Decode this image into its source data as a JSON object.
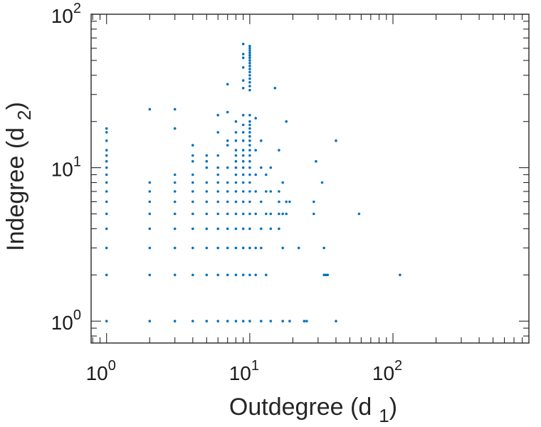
{
  "chart_data": {
    "type": "scatter",
    "title": "",
    "xlabel_main": "Outdegree (d",
    "xlabel_sub": "1",
    "xlabel_close": ")",
    "ylabel_main": "Indegree (d",
    "ylabel_sub": "2",
    "ylabel_close": ")",
    "x_scale": "log",
    "y_scale": "log",
    "xlim": [
      0.78,
      890
    ],
    "ylim": [
      0.72,
      100
    ],
    "grid": false,
    "box": true,
    "marker_color": "#0072BD",
    "x_ticks": [
      {
        "base": "10",
        "exp": "0"
      },
      {
        "base": "10",
        "exp": "1"
      },
      {
        "base": "10",
        "exp": "2"
      }
    ],
    "y_ticks": [
      {
        "base": "10",
        "exp": "0"
      },
      {
        "base": "10",
        "exp": "1"
      },
      {
        "base": "10",
        "exp": "2"
      }
    ],
    "series": [
      {
        "points": [
          [
            1,
            1
          ],
          [
            1,
            2
          ],
          [
            1,
            3
          ],
          [
            1,
            4
          ],
          [
            1,
            5
          ],
          [
            1,
            6
          ],
          [
            1,
            7
          ],
          [
            1,
            8
          ],
          [
            1,
            9
          ],
          [
            1,
            10
          ],
          [
            1,
            11
          ],
          [
            1,
            12
          ],
          [
            1,
            13
          ],
          [
            1,
            15
          ],
          [
            1,
            17
          ],
          [
            1,
            18
          ],
          [
            2,
            1
          ],
          [
            2,
            2
          ],
          [
            2,
            3
          ],
          [
            2,
            4
          ],
          [
            2,
            5
          ],
          [
            2,
            6
          ],
          [
            2,
            7
          ],
          [
            2,
            8
          ],
          [
            2,
            24
          ],
          [
            3,
            1
          ],
          [
            3,
            2
          ],
          [
            3,
            3
          ],
          [
            3,
            4
          ],
          [
            3,
            5
          ],
          [
            3,
            6
          ],
          [
            3,
            7
          ],
          [
            3,
            8
          ],
          [
            3,
            9
          ],
          [
            3,
            18
          ],
          [
            3,
            24
          ],
          [
            4,
            1
          ],
          [
            4,
            2
          ],
          [
            4,
            3
          ],
          [
            4,
            4
          ],
          [
            4,
            5
          ],
          [
            4,
            6
          ],
          [
            4,
            7
          ],
          [
            4,
            8
          ],
          [
            4,
            9
          ],
          [
            4,
            11
          ],
          [
            4,
            12
          ],
          [
            4,
            14
          ],
          [
            5,
            1
          ],
          [
            5,
            2
          ],
          [
            5,
            3
          ],
          [
            5,
            4
          ],
          [
            5,
            5
          ],
          [
            5,
            6
          ],
          [
            5,
            7
          ],
          [
            5,
            8
          ],
          [
            5,
            10
          ],
          [
            5,
            11
          ],
          [
            5,
            12
          ],
          [
            6,
            1
          ],
          [
            6,
            2
          ],
          [
            6,
            3
          ],
          [
            6,
            4
          ],
          [
            6,
            5
          ],
          [
            6,
            6
          ],
          [
            6,
            7
          ],
          [
            6,
            8
          ],
          [
            6,
            9
          ],
          [
            6,
            10
          ],
          [
            6,
            12
          ],
          [
            6,
            17
          ],
          [
            6,
            22
          ],
          [
            7,
            1
          ],
          [
            7,
            2
          ],
          [
            7,
            3
          ],
          [
            7,
            4
          ],
          [
            7,
            5
          ],
          [
            7,
            6
          ],
          [
            7,
            7
          ],
          [
            7,
            8
          ],
          [
            7,
            10
          ],
          [
            7,
            14
          ],
          [
            7,
            15
          ],
          [
            7,
            23
          ],
          [
            7,
            35
          ],
          [
            8,
            1
          ],
          [
            8,
            2
          ],
          [
            8,
            3
          ],
          [
            8,
            4
          ],
          [
            8,
            5
          ],
          [
            8,
            6
          ],
          [
            8,
            7
          ],
          [
            8,
            8
          ],
          [
            8,
            9
          ],
          [
            8,
            10
          ],
          [
            8,
            11
          ],
          [
            8,
            12
          ],
          [
            8,
            13
          ],
          [
            8,
            15
          ],
          [
            8,
            17
          ],
          [
            8,
            20
          ],
          [
            9,
            1
          ],
          [
            9,
            2
          ],
          [
            9,
            3
          ],
          [
            9,
            4
          ],
          [
            9,
            5
          ],
          [
            9,
            6
          ],
          [
            9,
            7
          ],
          [
            9,
            8
          ],
          [
            9,
            9
          ],
          [
            9,
            10
          ],
          [
            9,
            11
          ],
          [
            9,
            12
          ],
          [
            9,
            13
          ],
          [
            9,
            15
          ],
          [
            9,
            17
          ],
          [
            9,
            19
          ],
          [
            9,
            22
          ],
          [
            9,
            33
          ],
          [
            9,
            37
          ],
          [
            9,
            45
          ],
          [
            9,
            52
          ],
          [
            9,
            55
          ],
          [
            9,
            64
          ],
          [
            10,
            1
          ],
          [
            10,
            2
          ],
          [
            10,
            3
          ],
          [
            10,
            4
          ],
          [
            10,
            5
          ],
          [
            10,
            6
          ],
          [
            10,
            7
          ],
          [
            10,
            8
          ],
          [
            10,
            9
          ],
          [
            10,
            10
          ],
          [
            10,
            11
          ],
          [
            10,
            12
          ],
          [
            10,
            13
          ],
          [
            10,
            14
          ],
          [
            10,
            15
          ],
          [
            10,
            16
          ],
          [
            10,
            17
          ],
          [
            10,
            18
          ],
          [
            10,
            19
          ],
          [
            10,
            20
          ],
          [
            10,
            22
          ],
          [
            10,
            32
          ],
          [
            10,
            34
          ],
          [
            10,
            36
          ],
          [
            10,
            38
          ],
          [
            10,
            40
          ],
          [
            10,
            42
          ],
          [
            10,
            44
          ],
          [
            10,
            46
          ],
          [
            10,
            48
          ],
          [
            10,
            50
          ],
          [
            10,
            52
          ],
          [
            10,
            54
          ],
          [
            10,
            56
          ],
          [
            10,
            58
          ],
          [
            10,
            60
          ],
          [
            10,
            62
          ],
          [
            11,
            2
          ],
          [
            11,
            3
          ],
          [
            11,
            5
          ],
          [
            11,
            7
          ],
          [
            11,
            9
          ],
          [
            11,
            13
          ],
          [
            11,
            21
          ],
          [
            12,
            1
          ],
          [
            12,
            3
          ],
          [
            12,
            4
          ],
          [
            12,
            6
          ],
          [
            12,
            10
          ],
          [
            12,
            15
          ],
          [
            13,
            2
          ],
          [
            13,
            5
          ],
          [
            13,
            7
          ],
          [
            13,
            9
          ],
          [
            14,
            1
          ],
          [
            14,
            4
          ],
          [
            14,
            5
          ],
          [
            14,
            7
          ],
          [
            14,
            10
          ],
          [
            15,
            33
          ],
          [
            16,
            4
          ],
          [
            16,
            5
          ],
          [
            16,
            6
          ],
          [
            16,
            7
          ],
          [
            16,
            13
          ],
          [
            17,
            1
          ],
          [
            17,
            3
          ],
          [
            17,
            5
          ],
          [
            17,
            8
          ],
          [
            18,
            5
          ],
          [
            18,
            6
          ],
          [
            18,
            20
          ],
          [
            19,
            1
          ],
          [
            19,
            6
          ],
          [
            22,
            3
          ],
          [
            24,
            1
          ],
          [
            25,
            1
          ],
          [
            28,
            5
          ],
          [
            28,
            6
          ],
          [
            29,
            11
          ],
          [
            32,
            8
          ],
          [
            33,
            2
          ],
          [
            33,
            3
          ],
          [
            34,
            2
          ],
          [
            35,
            2
          ],
          [
            40,
            1
          ],
          [
            40,
            15
          ],
          [
            58,
            5
          ],
          [
            112,
            2
          ]
        ]
      }
    ]
  }
}
